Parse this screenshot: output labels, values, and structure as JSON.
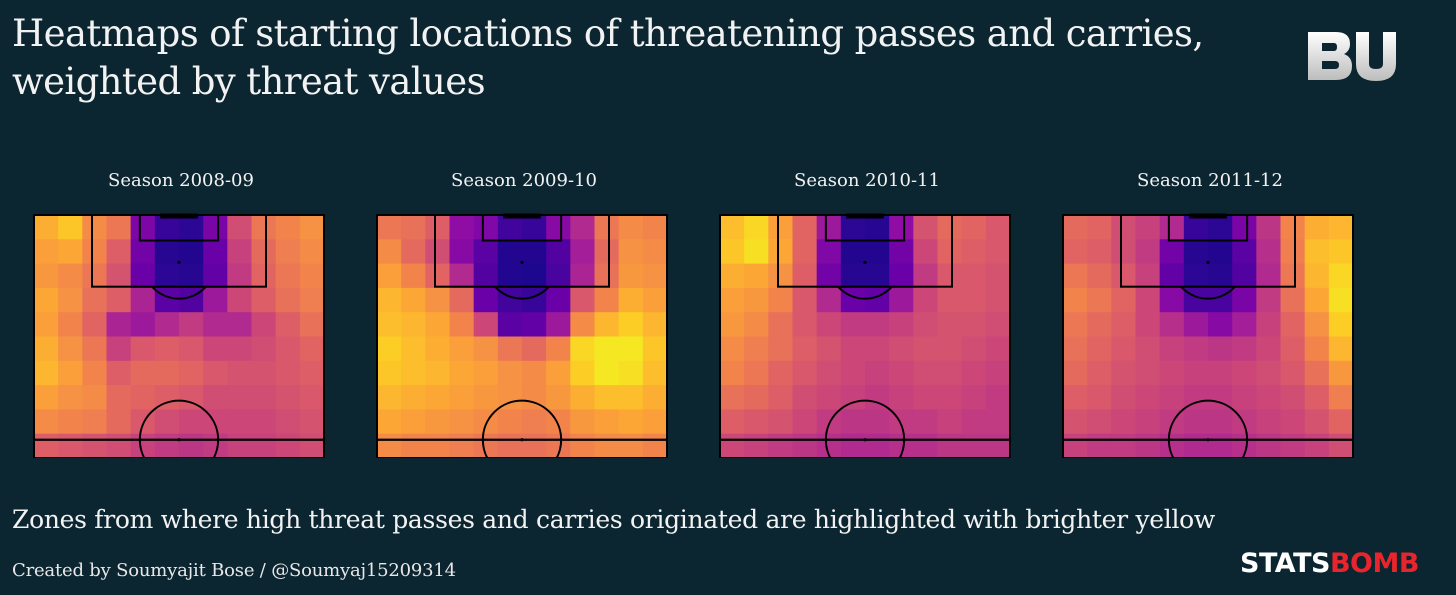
{
  "header": {
    "title_line1": "Heatmaps of starting locations of threatening passes and carries,",
    "title_line2": "weighted by threat values",
    "logo_text": "BU"
  },
  "footer": {
    "subtitle": "Zones from where high threat passes and carries originated are highlighted with brighter yellow",
    "credit": "Created by Soumyajit Bose / @Soumyaj15209314",
    "brand_part1": "STATS",
    "brand_part2": "BOMB"
  },
  "colors": {
    "background": "#0c2631",
    "colormap": "plasma",
    "pitch_lines": "#000000",
    "brand_red": "#e8242c"
  },
  "chart_data": [
    {
      "type": "heatmap",
      "title": "Season 2008-09",
      "colormap": "plasma",
      "rows": 10,
      "cols": 12,
      "values": [
        [
          0.82,
          0.88,
          0.72,
          0.66,
          0.25,
          0.08,
          0.06,
          0.24,
          0.52,
          0.66,
          0.7,
          0.74
        ],
        [
          0.78,
          0.8,
          0.7,
          0.58,
          0.22,
          0.05,
          0.04,
          0.2,
          0.48,
          0.62,
          0.68,
          0.72
        ],
        [
          0.76,
          0.72,
          0.66,
          0.54,
          0.2,
          0.06,
          0.05,
          0.18,
          0.46,
          0.6,
          0.66,
          0.7
        ],
        [
          0.8,
          0.74,
          0.64,
          0.58,
          0.38,
          0.16,
          0.14,
          0.34,
          0.5,
          0.58,
          0.64,
          0.68
        ],
        [
          0.78,
          0.7,
          0.6,
          0.38,
          0.34,
          0.4,
          0.46,
          0.4,
          0.4,
          0.5,
          0.58,
          0.64
        ],
        [
          0.82,
          0.74,
          0.66,
          0.48,
          0.56,
          0.58,
          0.56,
          0.5,
          0.5,
          0.52,
          0.56,
          0.6
        ],
        [
          0.84,
          0.78,
          0.7,
          0.58,
          0.62,
          0.62,
          0.6,
          0.56,
          0.54,
          0.54,
          0.56,
          0.58
        ],
        [
          0.78,
          0.74,
          0.72,
          0.62,
          0.6,
          0.58,
          0.56,
          0.52,
          0.52,
          0.52,
          0.54,
          0.56
        ],
        [
          0.72,
          0.7,
          0.68,
          0.62,
          0.56,
          0.52,
          0.5,
          0.5,
          0.5,
          0.5,
          0.52,
          0.54
        ],
        [
          0.58,
          0.56,
          0.54,
          0.52,
          0.48,
          0.46,
          0.44,
          0.46,
          0.48,
          0.48,
          0.5,
          0.52
        ]
      ]
    },
    {
      "type": "heatmap",
      "title": "Season 2009-10",
      "colormap": "plasma",
      "rows": 10,
      "cols": 12,
      "values": [
        [
          0.66,
          0.64,
          0.58,
          0.3,
          0.26,
          0.1,
          0.08,
          0.28,
          0.4,
          0.66,
          0.72,
          0.7
        ],
        [
          0.72,
          0.62,
          0.52,
          0.28,
          0.16,
          0.04,
          0.04,
          0.14,
          0.36,
          0.62,
          0.74,
          0.72
        ],
        [
          0.78,
          0.7,
          0.6,
          0.4,
          0.14,
          0.04,
          0.03,
          0.12,
          0.38,
          0.64,
          0.76,
          0.74
        ],
        [
          0.84,
          0.8,
          0.74,
          0.62,
          0.2,
          0.1,
          0.08,
          0.2,
          0.56,
          0.7,
          0.82,
          0.78
        ],
        [
          0.86,
          0.84,
          0.8,
          0.7,
          0.5,
          0.16,
          0.18,
          0.34,
          0.72,
          0.84,
          0.9,
          0.84
        ],
        [
          0.9,
          0.86,
          0.82,
          0.78,
          0.74,
          0.66,
          0.62,
          0.7,
          0.92,
          0.96,
          0.96,
          0.88
        ],
        [
          0.88,
          0.86,
          0.84,
          0.8,
          0.78,
          0.74,
          0.72,
          0.78,
          0.9,
          0.96,
          0.94,
          0.86
        ],
        [
          0.84,
          0.82,
          0.8,
          0.78,
          0.76,
          0.74,
          0.72,
          0.76,
          0.82,
          0.86,
          0.86,
          0.82
        ],
        [
          0.8,
          0.78,
          0.76,
          0.74,
          0.72,
          0.7,
          0.68,
          0.7,
          0.76,
          0.78,
          0.8,
          0.78
        ],
        [
          0.72,
          0.7,
          0.7,
          0.68,
          0.66,
          0.64,
          0.64,
          0.66,
          0.7,
          0.72,
          0.72,
          0.7
        ]
      ]
    },
    {
      "type": "heatmap",
      "title": "Season 2010-11",
      "colormap": "plasma",
      "rows": 10,
      "cols": 12,
      "values": [
        [
          0.86,
          0.92,
          0.78,
          0.6,
          0.34,
          0.06,
          0.05,
          0.3,
          0.54,
          0.62,
          0.6,
          0.56
        ],
        [
          0.88,
          0.94,
          0.8,
          0.6,
          0.26,
          0.04,
          0.04,
          0.22,
          0.5,
          0.6,
          0.58,
          0.56
        ],
        [
          0.82,
          0.8,
          0.74,
          0.58,
          0.22,
          0.05,
          0.05,
          0.2,
          0.46,
          0.56,
          0.56,
          0.54
        ],
        [
          0.78,
          0.76,
          0.7,
          0.56,
          0.4,
          0.2,
          0.18,
          0.34,
          0.5,
          0.56,
          0.56,
          0.54
        ],
        [
          0.76,
          0.72,
          0.64,
          0.56,
          0.5,
          0.46,
          0.46,
          0.48,
          0.52,
          0.54,
          0.54,
          0.52
        ],
        [
          0.72,
          0.68,
          0.64,
          0.58,
          0.54,
          0.5,
          0.5,
          0.52,
          0.54,
          0.54,
          0.52,
          0.5
        ],
        [
          0.7,
          0.66,
          0.6,
          0.56,
          0.52,
          0.5,
          0.48,
          0.5,
          0.52,
          0.52,
          0.5,
          0.48
        ],
        [
          0.64,
          0.62,
          0.58,
          0.52,
          0.5,
          0.48,
          0.46,
          0.48,
          0.5,
          0.5,
          0.48,
          0.46
        ],
        [
          0.58,
          0.56,
          0.54,
          0.5,
          0.46,
          0.44,
          0.44,
          0.46,
          0.46,
          0.48,
          0.46,
          0.46
        ],
        [
          0.5,
          0.48,
          0.46,
          0.44,
          0.42,
          0.4,
          0.4,
          0.42,
          0.42,
          0.44,
          0.44,
          0.44
        ]
      ]
    },
    {
      "type": "heatmap",
      "title": "Season 2011-12",
      "colormap": "plasma",
      "rows": 10,
      "cols": 12,
      "values": [
        [
          0.62,
          0.6,
          0.52,
          0.48,
          0.4,
          0.08,
          0.06,
          0.24,
          0.44,
          0.7,
          0.82,
          0.84
        ],
        [
          0.6,
          0.58,
          0.52,
          0.46,
          0.22,
          0.05,
          0.04,
          0.16,
          0.42,
          0.68,
          0.86,
          0.88
        ],
        [
          0.66,
          0.62,
          0.56,
          0.48,
          0.18,
          0.06,
          0.05,
          0.14,
          0.4,
          0.66,
          0.84,
          0.92
        ],
        [
          0.7,
          0.66,
          0.6,
          0.5,
          0.28,
          0.12,
          0.12,
          0.24,
          0.46,
          0.64,
          0.8,
          0.94
        ],
        [
          0.66,
          0.62,
          0.58,
          0.5,
          0.42,
          0.34,
          0.28,
          0.36,
          0.48,
          0.6,
          0.74,
          0.9
        ],
        [
          0.64,
          0.6,
          0.56,
          0.52,
          0.48,
          0.46,
          0.44,
          0.46,
          0.5,
          0.58,
          0.7,
          0.84
        ],
        [
          0.62,
          0.58,
          0.54,
          0.52,
          0.5,
          0.48,
          0.48,
          0.5,
          0.52,
          0.56,
          0.64,
          0.76
        ],
        [
          0.58,
          0.56,
          0.52,
          0.5,
          0.48,
          0.46,
          0.46,
          0.48,
          0.5,
          0.52,
          0.58,
          0.68
        ],
        [
          0.54,
          0.52,
          0.5,
          0.48,
          0.46,
          0.44,
          0.44,
          0.46,
          0.48,
          0.5,
          0.54,
          0.6
        ],
        [
          0.48,
          0.46,
          0.46,
          0.44,
          0.42,
          0.4,
          0.4,
          0.42,
          0.44,
          0.46,
          0.48,
          0.52
        ]
      ]
    }
  ]
}
